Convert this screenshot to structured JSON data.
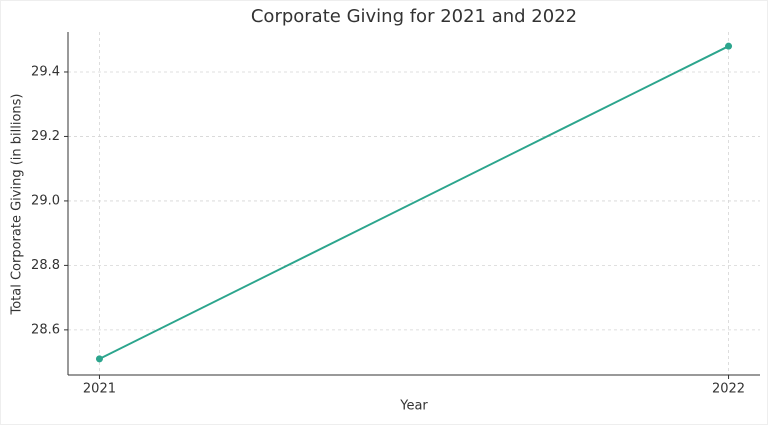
{
  "chart_data": {
    "type": "line",
    "title": "Corporate Giving for 2021 and 2022",
    "x_label": "Year",
    "y_label": "Total Corporate Giving (in billions)",
    "x": [
      2021,
      2022
    ],
    "series": [
      {
        "name": "Total Corporate Giving",
        "color": "#2ca58d",
        "values": [
          28.51,
          29.48
        ]
      }
    ],
    "xlim": [
      2020.95,
      2022.05
    ],
    "xticks": [
      2021,
      2022
    ],
    "ylim": [
      28.46,
      29.524
    ],
    "yticks": [
      28.6,
      28.8,
      {
        "value": 29,
        "label": "29.0"
      },
      29.2,
      29.4
    ],
    "grid": true
  }
}
